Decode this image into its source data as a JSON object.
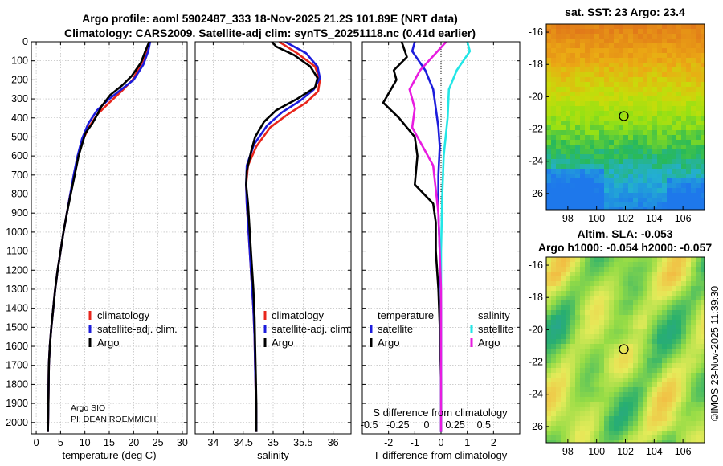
{
  "header": {
    "line1": "Argo profile: aoml 5902487_333 18-Nov-2025 21.2S 101.89E (NRT data)",
    "line2": "Climatology: CARS2009. Satellite-adj clim: synTS_20251118.nc (0.41d earlier)"
  },
  "colors": {
    "climatology": "#e8261c",
    "satellite": "#1c1cdc",
    "argo": "#000000",
    "satellite_sal": "#22e6e6",
    "argo_sal": "#e81ce0",
    "grid": "#b0b0b0"
  },
  "chart_data": [
    {
      "id": "temperature_profile",
      "type": "line",
      "xlabel": "temperature (deg C)",
      "ylabel": "",
      "xlim": [
        -1,
        31
      ],
      "ylim": [
        2060,
        0
      ],
      "xticks": [
        0,
        5,
        10,
        15,
        20,
        25,
        30
      ],
      "yticks": [
        0,
        100,
        200,
        300,
        400,
        500,
        600,
        700,
        800,
        900,
        1000,
        1100,
        1200,
        1300,
        1400,
        1500,
        1600,
        1700,
        1800,
        1900,
        2000
      ],
      "grid": true,
      "legend": {
        "position": "bottom-right",
        "entries": [
          "climatology",
          "satellite-adj. clim.",
          "Argo"
        ]
      },
      "notes": [
        "Argo SIO",
        "PI: DEAN ROEMMICH"
      ],
      "series": [
        {
          "name": "climatology",
          "color_key": "climatology",
          "x": [
            23.3,
            22.8,
            21.5,
            19.8,
            17.5,
            15.0,
            12.6,
            10.8,
            9.5,
            8.6,
            7.8,
            7.0,
            6.3,
            5.6,
            5.0,
            4.4,
            3.9,
            3.5,
            3.1,
            2.8,
            2.6,
            2.5,
            2.4
          ],
          "depth": [
            0,
            50,
            120,
            200,
            260,
            320,
            380,
            450,
            520,
            600,
            700,
            800,
            900,
            1000,
            1100,
            1200,
            1300,
            1400,
            1500,
            1600,
            1700,
            1900,
            2050
          ]
        },
        {
          "name": "satellite-adj. clim.",
          "color_key": "satellite",
          "x": [
            23.4,
            23.0,
            22.0,
            20.0,
            17.5,
            15.0,
            12.5,
            10.7,
            9.4,
            8.5,
            7.7,
            7.0,
            6.3,
            5.6,
            5.0,
            4.4,
            3.9,
            3.5,
            3.1,
            2.8,
            2.6,
            2.5,
            2.4
          ],
          "depth": [
            0,
            50,
            120,
            200,
            250,
            300,
            360,
            430,
            510,
            600,
            700,
            800,
            900,
            1000,
            1100,
            1200,
            1300,
            1400,
            1500,
            1600,
            1700,
            1900,
            2050
          ]
        },
        {
          "name": "Argo",
          "color_key": "argo",
          "x": [
            23.2,
            22.4,
            21.5,
            19.6,
            17.6,
            15.2,
            13.4,
            12.6,
            11.5,
            10.1,
            9.5,
            8.7,
            7.9,
            7.1,
            6.3,
            5.6,
            5.0,
            4.4,
            3.9,
            3.5,
            3.1,
            2.8,
            2.6,
            2.5,
            2.4
          ],
          "depth": [
            0,
            50,
            110,
            180,
            230,
            280,
            340,
            380,
            430,
            480,
            530,
            600,
            700,
            800,
            900,
            1000,
            1100,
            1200,
            1300,
            1400,
            1500,
            1600,
            1700,
            1900,
            2050
          ]
        }
      ]
    },
    {
      "id": "salinity_profile",
      "type": "line",
      "xlabel": "salinity",
      "xlim": [
        33.7,
        36.3
      ],
      "ylim": [
        2060,
        0
      ],
      "xticks": [
        34,
        34.5,
        35,
        35.5,
        36
      ],
      "grid": true,
      "legend": {
        "position": "bottom-right",
        "entries": [
          "climatology",
          "satellite-adj. clim.",
          "Argo"
        ]
      },
      "series": [
        {
          "name": "climatology",
          "color_key": "climatology",
          "x": [
            35.1,
            35.4,
            35.7,
            35.78,
            35.75,
            35.55,
            35.25,
            34.95,
            34.72,
            34.58,
            34.55,
            34.56,
            34.58,
            34.61,
            34.64,
            34.67,
            34.69,
            34.7,
            34.71,
            34.72,
            34.72
          ],
          "depth": [
            0,
            60,
            130,
            200,
            260,
            320,
            380,
            450,
            550,
            650,
            750,
            850,
            950,
            1100,
            1250,
            1400,
            1550,
            1700,
            1850,
            1950,
            2050
          ]
        },
        {
          "name": "satellite-adj. clim.",
          "color_key": "satellite",
          "x": [
            35.2,
            35.55,
            35.74,
            35.78,
            35.68,
            35.45,
            35.15,
            34.9,
            34.68,
            34.56,
            34.55,
            34.56,
            34.58,
            34.61,
            34.64,
            34.67,
            34.69,
            34.7,
            34.71,
            34.72,
            34.72
          ],
          "depth": [
            0,
            60,
            130,
            190,
            250,
            310,
            370,
            440,
            540,
            650,
            750,
            850,
            950,
            1100,
            1250,
            1400,
            1550,
            1700,
            1850,
            1950,
            2050
          ]
        },
        {
          "name": "Argo",
          "color_key": "argo",
          "x": [
            34.98,
            35.05,
            35.35,
            35.62,
            35.74,
            35.7,
            35.4,
            35.05,
            34.85,
            34.7,
            34.63,
            34.56,
            34.55,
            34.58,
            34.61,
            34.64,
            34.67,
            34.69,
            34.7,
            34.71,
            34.72,
            34.72
          ],
          "depth": [
            0,
            25,
            70,
            130,
            190,
            240,
            300,
            360,
            420,
            500,
            580,
            680,
            750,
            850,
            1000,
            1150,
            1300,
            1450,
            1600,
            1750,
            1900,
            2050
          ]
        }
      ]
    },
    {
      "id": "difference_profile",
      "type": "line",
      "xlabel": "T difference from climatology",
      "xlabel_top": "S difference from climatology",
      "xlim": [
        -3,
        3
      ],
      "ylim": [
        2060,
        0
      ],
      "xticks": [
        -2,
        -1,
        0,
        1,
        2
      ],
      "xtick_labels": [
        "-2",
        "-1",
        "0",
        "1",
        "2"
      ],
      "xticks_s": [
        "-0.5",
        "-0.25",
        "0",
        "0.25",
        "0.5"
      ],
      "grid": true,
      "legend": {
        "position": "bottom",
        "headers": [
          "temperature",
          "salinity"
        ],
        "entries": [
          "satellite",
          "Argo"
        ]
      },
      "series": [
        {
          "name": "temperature satellite",
          "color_key": "satellite",
          "x": [
            -1.0,
            -1.1,
            -0.6,
            -0.3,
            -0.2,
            -0.1,
            -0.05,
            -0.1,
            -0.1,
            -0.05,
            0,
            0,
            0
          ],
          "depth": [
            0,
            50,
            150,
            250,
            350,
            450,
            550,
            700,
            900,
            1100,
            1400,
            1700,
            2050
          ]
        },
        {
          "name": "temperature Argo",
          "color_key": "argo",
          "x": [
            -1.5,
            -1.3,
            -1.8,
            -1.7,
            -2.2,
            -1.6,
            -1.0,
            -0.9,
            -1.0,
            -0.3,
            -0.2,
            -0.2,
            -0.1,
            -0.05,
            0,
            0
          ],
          "depth": [
            0,
            80,
            150,
            200,
            320,
            400,
            500,
            600,
            750,
            850,
            950,
            1100,
            1300,
            1500,
            1800,
            2050
          ]
        },
        {
          "name": "salinity satellite",
          "color_key": "satellite_sal",
          "x": [
            1.0,
            1.1,
            0.6,
            0.3,
            0.25,
            0.1,
            0.05,
            0,
            0,
            0
          ],
          "depth": [
            0,
            50,
            150,
            250,
            400,
            600,
            800,
            1100,
            1500,
            2050
          ]
        },
        {
          "name": "salinity Argo",
          "color_key": "argo_sal",
          "x": [
            0.2,
            -0.2,
            -0.8,
            -1.2,
            -1.0,
            -1.1,
            -0.3,
            -0.1,
            0,
            0
          ],
          "depth": [
            0,
            60,
            150,
            250,
            350,
            450,
            650,
            900,
            1300,
            2050
          ]
        }
      ]
    },
    {
      "id": "sat_sst_map",
      "type": "heatmap",
      "title": "sat. SST: 23 Argo: 23.4",
      "xlim": [
        96.5,
        107.5
      ],
      "ylim": [
        -27,
        -15.5
      ],
      "xticks": [
        98,
        100,
        102,
        104,
        106
      ],
      "yticks": [
        -16,
        -18,
        -20,
        -22,
        -24,
        -26
      ],
      "marker": [
        101.89,
        -21.2
      ]
    },
    {
      "id": "sla_map",
      "type": "heatmap",
      "title": "Altim. SLA: -0.053",
      "subtitle": "Argo h1000: -0.054 h2000: -0.057",
      "xlim": [
        96.5,
        107.5
      ],
      "ylim": [
        -27,
        -15.5
      ],
      "xticks": [
        98,
        100,
        102,
        104,
        106
      ],
      "yticks": [
        -16,
        -18,
        -20,
        -22,
        -24,
        -26
      ],
      "marker": [
        101.89,
        -21.2
      ]
    }
  ],
  "side_label": "©IMOS 23-Nov-2025 11:39:30"
}
